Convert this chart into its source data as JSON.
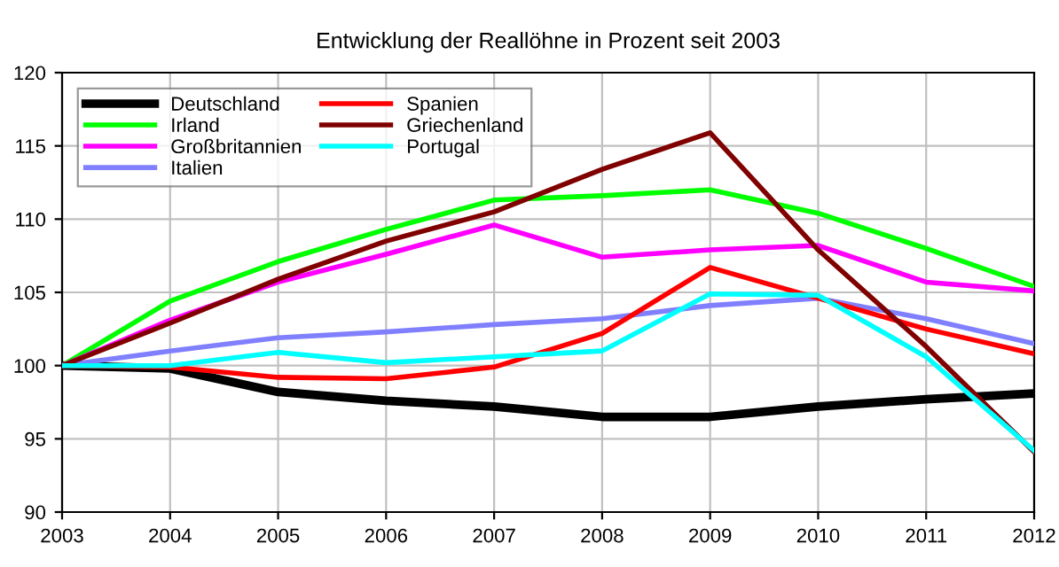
{
  "chart_data": {
    "type": "line",
    "title": "Entwicklung der Reallöhne in Prozent seit 2003",
    "x": [
      2003,
      2004,
      2005,
      2006,
      2007,
      2008,
      2009,
      2010,
      2011,
      2012
    ],
    "xlim": [
      2003,
      2012
    ],
    "xticks": [
      2003,
      2004,
      2005,
      2006,
      2007,
      2008,
      2009,
      2010,
      2011,
      2012
    ],
    "ylim": [
      90,
      120
    ],
    "yticks": [
      90,
      95,
      100,
      105,
      110,
      115,
      120
    ],
    "grid": true,
    "legend": "top left",
    "marker": "none",
    "line_style": "solid",
    "series": [
      {
        "name": "Deutschland",
        "color": "#000000",
        "values": [
          100,
          99.8,
          98.2,
          97.6,
          97.2,
          96.5,
          96.5,
          97.2,
          97.7,
          98.1
        ]
      },
      {
        "name": "Irland",
        "color": "#00ff00",
        "values": [
          100,
          104.4,
          107.1,
          109.3,
          111.3,
          111.6,
          112.0,
          110.4,
          108.0,
          105.4
        ]
      },
      {
        "name": "Großbritannien",
        "color": "#ff00ff",
        "values": [
          100,
          103.1,
          105.7,
          107.6,
          109.6,
          107.4,
          107.9,
          108.2,
          105.7,
          105.1
        ]
      },
      {
        "name": "Italien",
        "color": "#8080ff",
        "values": [
          100,
          101.0,
          101.9,
          102.3,
          102.8,
          103.2,
          104.1,
          104.6,
          103.2,
          101.5
        ]
      },
      {
        "name": "Spanien",
        "color": "#ff0000",
        "values": [
          100,
          99.9,
          99.2,
          99.1,
          99.9,
          102.2,
          106.7,
          104.6,
          102.5,
          100.8
        ]
      },
      {
        "name": "Griechenland",
        "color": "#800000",
        "values": [
          100,
          102.9,
          105.9,
          108.5,
          110.5,
          113.4,
          115.9,
          107.9,
          101.3,
          94.1
        ]
      },
      {
        "name": "Portugal",
        "color": "#00ffff",
        "values": [
          100,
          100.0,
          100.9,
          100.2,
          100.6,
          101.0,
          104.9,
          104.8,
          100.6,
          94.2
        ]
      }
    ]
  }
}
